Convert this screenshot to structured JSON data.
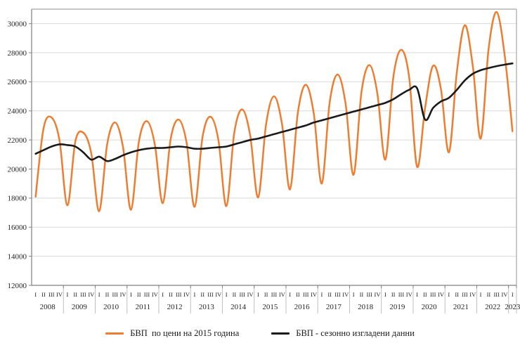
{
  "colors": {
    "gdp_line": "#ED7D31",
    "sa_line": "#1A1A1A",
    "gridline": "#D9D9D9",
    "axis": "#808080",
    "frame": "#A6A6A6",
    "tick_text": "#262626"
  },
  "chart_data": {
    "type": "line",
    "title": "",
    "grid": "horizontal",
    "legend_position": "bottom",
    "smooth": true,
    "ylim": [
      12000,
      31000
    ],
    "y_ticks": [
      "12000",
      "14000",
      "16000",
      "18000",
      "20000",
      "22000",
      "24000",
      "26000",
      "28000",
      "30000"
    ],
    "x_axis": {
      "quarter_labels": [
        "I",
        "II",
        "III",
        "IV"
      ],
      "years": [
        {
          "label": "2008",
          "quarters": [
            "I",
            "II",
            "III",
            "IV"
          ]
        },
        {
          "label": "2009",
          "quarters": [
            "I",
            "II",
            "III",
            "IV"
          ]
        },
        {
          "label": "2010",
          "quarters": [
            "I",
            "II",
            "III",
            "IV"
          ]
        },
        {
          "label": "2011",
          "quarters": [
            "I",
            "II",
            "III",
            "IV"
          ]
        },
        {
          "label": "2012",
          "quarters": [
            "I",
            "II",
            "III",
            "IV"
          ]
        },
        {
          "label": "2013",
          "quarters": [
            "I",
            "II",
            "III",
            "IV"
          ]
        },
        {
          "label": "2014",
          "quarters": [
            "I",
            "II",
            "III",
            "IV"
          ]
        },
        {
          "label": "2015",
          "quarters": [
            "I",
            "II",
            "III",
            "IV"
          ]
        },
        {
          "label": "2016",
          "quarters": [
            "I",
            "II",
            "III",
            "IV"
          ]
        },
        {
          "label": "2017",
          "quarters": [
            "I",
            "II",
            "III",
            "IV"
          ]
        },
        {
          "label": "2018",
          "quarters": [
            "I",
            "II",
            "III",
            "IV"
          ]
        },
        {
          "label": "2019",
          "quarters": [
            "I",
            "II",
            "III",
            "IV"
          ]
        },
        {
          "label": "2020",
          "quarters": [
            "I",
            "II",
            "III",
            "IV"
          ]
        },
        {
          "label": "2021",
          "quarters": [
            "I",
            "II",
            "III",
            "IV"
          ]
        },
        {
          "label": "2022",
          "quarters": [
            "I",
            "II",
            "III",
            "IV"
          ]
        },
        {
          "label": "2023",
          "quarters": [
            "I"
          ]
        }
      ]
    },
    "series": [
      {
        "name": "БВП  по цени на 2015 година",
        "color": "#ED7D31",
        "stroke_width": 2.5,
        "values": [
          18100,
          22800,
          23550,
          22000,
          17500,
          21900,
          22500,
          21100,
          17100,
          21700,
          23200,
          21500,
          17200,
          21900,
          23300,
          21700,
          17650,
          22100,
          23400,
          21800,
          17400,
          22200,
          23600,
          22000,
          17450,
          22500,
          24100,
          22300,
          18050,
          23100,
          25000,
          23100,
          18600,
          23900,
          25800,
          23800,
          19000,
          24600,
          26500,
          24500,
          19600,
          25300,
          27150,
          25200,
          20650,
          26300,
          28200,
          26300,
          20150,
          24200,
          27100,
          25500,
          21150,
          26700,
          29900,
          27100,
          22100,
          28300,
          30800,
          27900,
          22600
        ]
      },
      {
        "name": "БВП - сезонно изгладени данни",
        "color": "#1A1A1A",
        "stroke_width": 2.6,
        "values": [
          21050,
          21300,
          21550,
          21700,
          21650,
          21550,
          21150,
          20650,
          20850,
          20550,
          20700,
          20950,
          21150,
          21300,
          21400,
          21450,
          21450,
          21500,
          21550,
          21500,
          21400,
          21400,
          21450,
          21500,
          21550,
          21700,
          21850,
          22000,
          22100,
          22250,
          22400,
          22550,
          22700,
          22850,
          23000,
          23200,
          23350,
          23500,
          23650,
          23800,
          23950,
          24100,
          24250,
          24400,
          24550,
          24800,
          25150,
          25450,
          25550,
          23400,
          24200,
          24650,
          24900,
          25450,
          26100,
          26550,
          26800,
          26950,
          27080,
          27180,
          27270
        ]
      }
    ]
  },
  "legend": {
    "items": [
      {
        "label": "БВП  по цени на 2015 година"
      },
      {
        "label": "БВП - сезонно изгладени данни"
      }
    ]
  }
}
